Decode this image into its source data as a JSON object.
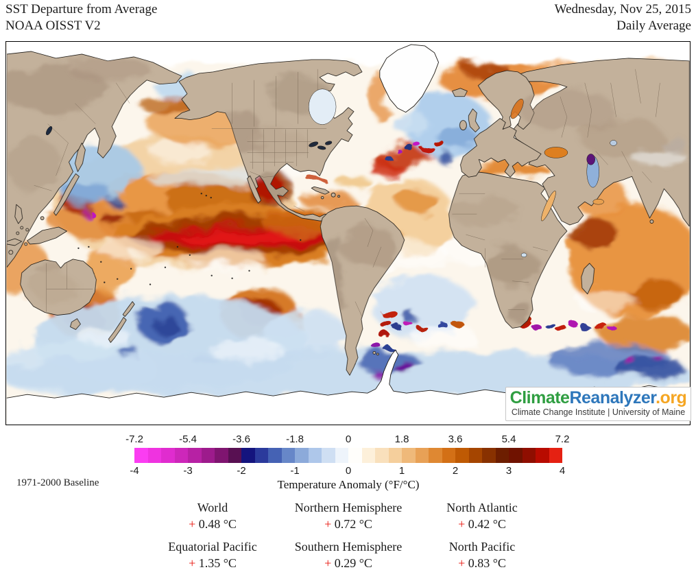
{
  "header": {
    "title": "SST Departure from Average",
    "subtitle": "NOAA OISST V2",
    "date": "Wednesday, Nov 25, 2015",
    "mode": "Daily Average"
  },
  "branding": {
    "name_part1": "Climate",
    "name_part2": "Reanalyzer",
    "name_part3": ".org",
    "color1": "#2f9e41",
    "color2": "#2e77bb",
    "color3": "#f5a623",
    "institute": "Climate Change Institute | University of Maine"
  },
  "colorbar": {
    "f_labels": [
      "-7.2",
      "-5.4",
      "-3.6",
      "-1.8",
      "0",
      "1.8",
      "3.6",
      "5.4",
      "7.2"
    ],
    "c_labels": [
      "-4",
      "-3",
      "-2",
      "-1",
      "0",
      "1",
      "2",
      "3",
      "4"
    ],
    "axis_label": "Temperature Anomaly (°F/°C)",
    "baseline_label": "1971-2000 Baseline",
    "colors": [
      "#fb3df2",
      "#ef33e0",
      "#e02ccf",
      "#cd27ba",
      "#b721a4",
      "#9d1b8c",
      "#7f1570",
      "#581052",
      "#14147e",
      "#2b3a9c",
      "#4562b4",
      "#6787c8",
      "#8caada",
      "#aec7ea",
      "#cfdff3",
      "#eef4fb",
      "#fffefb",
      "#fdf0da",
      "#f9e0bc",
      "#f5cf9c",
      "#efb97a",
      "#e8a156",
      "#df8832",
      "#d37016",
      "#bf5a04",
      "#a54500",
      "#883100",
      "#6d1e00",
      "#701200",
      "#8f0e00",
      "#b80b00",
      "#e52112"
    ]
  },
  "stats": {
    "plus_sign": "+",
    "plus_color": "#e8120a",
    "cells": [
      {
        "label": "World",
        "value": "0.48 °C"
      },
      {
        "label": "Northern Hemisphere",
        "value": "0.72 °C"
      },
      {
        "label": "North Atlantic",
        "value": "0.42 °C"
      },
      {
        "label": "Equatorial Pacific",
        "value": "1.35 °C"
      },
      {
        "label": "Southern Hemisphere",
        "value": "0.29 °C"
      },
      {
        "label": "North Pacific",
        "value": "0.83 °C"
      }
    ]
  },
  "map_palette": {
    "land": "#c3b19b",
    "coastline": "#1d1a16",
    "ice_and_snow": "#ffffff",
    "ocean_neutral": "#fcf6ec",
    "warm_anomaly": "#e08030",
    "strong_warm_el_nino": "#c60d0d",
    "cool_anomaly": "#a9c9e7",
    "strong_cool": "#2b3a9c",
    "eddy_magenta": "#c018c0"
  },
  "chart_data": {
    "type": "heatmap",
    "title": "SST Departure from Average",
    "dataset": "NOAA OISST V2",
    "date": "Wednesday, Nov 25, 2015",
    "aggregation": "Daily Average",
    "baseline": "1971-2000 Baseline",
    "colorbar_label": "Temperature Anomaly (°F/°C)",
    "scale_degF": [
      -7.2,
      -5.4,
      -3.6,
      -1.8,
      0,
      1.8,
      3.6,
      5.4,
      7.2
    ],
    "scale_degC": [
      -4,
      -3,
      -2,
      -1,
      0,
      1,
      2,
      3,
      4
    ],
    "regional_mean_anomaly_degC": {
      "World": 0.48,
      "Northern Hemisphere": 0.72,
      "Southern Hemisphere": 0.29,
      "North Atlantic": 0.42,
      "North Pacific": 0.83,
      "Equatorial Pacific": 1.35
    }
  }
}
